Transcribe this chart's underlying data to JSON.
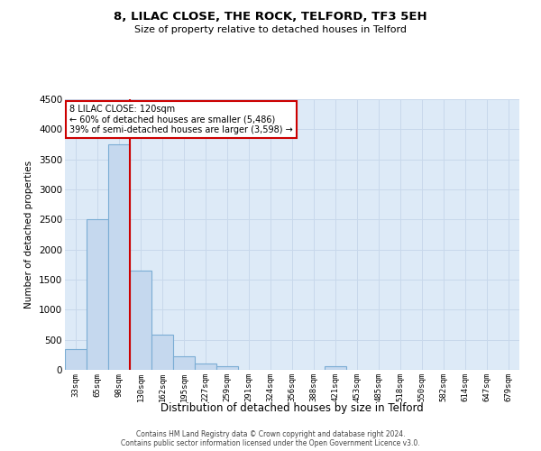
{
  "title": "8, LILAC CLOSE, THE ROCK, TELFORD, TF3 5EH",
  "subtitle": "Size of property relative to detached houses in Telford",
  "xlabel": "Distribution of detached houses by size in Telford",
  "ylabel": "Number of detached properties",
  "categories": [
    "33sqm",
    "65sqm",
    "98sqm",
    "130sqm",
    "162sqm",
    "195sqm",
    "227sqm",
    "259sqm",
    "291sqm",
    "324sqm",
    "356sqm",
    "388sqm",
    "421sqm",
    "453sqm",
    "485sqm",
    "518sqm",
    "550sqm",
    "582sqm",
    "614sqm",
    "647sqm",
    "679sqm"
  ],
  "values": [
    350,
    2500,
    3750,
    1650,
    580,
    220,
    100,
    60,
    0,
    0,
    0,
    0,
    55,
    0,
    0,
    0,
    0,
    0,
    0,
    0,
    0
  ],
  "bar_color": "#c5d8ee",
  "bar_edge_color": "#7badd4",
  "vline_color": "#cc0000",
  "vline_x_index": 3,
  "annotation_text": "8 LILAC CLOSE: 120sqm\n← 60% of detached houses are smaller (5,486)\n39% of semi-detached houses are larger (3,598) →",
  "annotation_box_facecolor": "#ffffff",
  "annotation_box_edgecolor": "#cc0000",
  "ylim": [
    0,
    4500
  ],
  "yticks": [
    0,
    500,
    1000,
    1500,
    2000,
    2500,
    3000,
    3500,
    4000,
    4500
  ],
  "grid_color": "#c8d8eb",
  "plot_bg_color": "#ddeaf7",
  "footer_line1": "Contains HM Land Registry data © Crown copyright and database right 2024.",
  "footer_line2": "Contains public sector information licensed under the Open Government Licence v3.0."
}
